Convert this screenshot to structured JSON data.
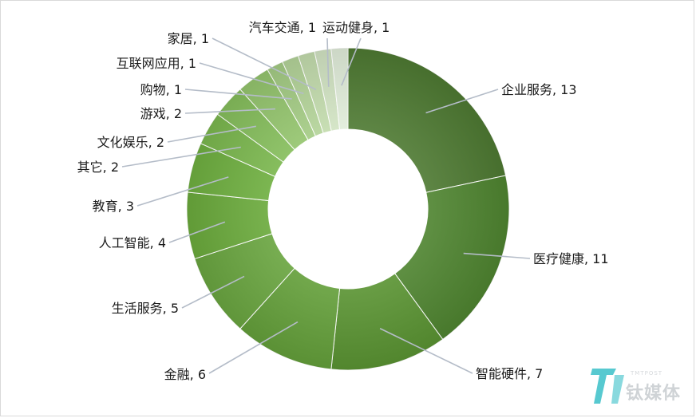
{
  "chart_data": {
    "type": "pie",
    "donut": true,
    "title": "",
    "slices": [
      {
        "label": "企业服务",
        "value": 13,
        "display": "企业服务, 13"
      },
      {
        "label": "医疗健康",
        "value": 11,
        "display": "医疗健康, 11"
      },
      {
        "label": "智能硬件",
        "value": 7,
        "display": "智能硬件, 7"
      },
      {
        "label": "金融",
        "value": 6,
        "display": "金融, 6"
      },
      {
        "label": "生活服务",
        "value": 5,
        "display": "生活服务, 5"
      },
      {
        "label": "人工智能",
        "value": 4,
        "display": "人工智能, 4"
      },
      {
        "label": "教育",
        "value": 3,
        "display": "教育, 3"
      },
      {
        "label": "其它",
        "value": 2,
        "display": "其它, 2"
      },
      {
        "label": "文化娱乐",
        "value": 2,
        "display": "文化娱乐, 2"
      },
      {
        "label": "游戏",
        "value": 2,
        "display": "游戏, 2"
      },
      {
        "label": "购物",
        "value": 1,
        "display": "购物, 1"
      },
      {
        "label": "互联网应用",
        "value": 1,
        "display": "互联网应用, 1"
      },
      {
        "label": "家居",
        "value": 1,
        "display": "家居, 1"
      },
      {
        "label": "汽车交通",
        "value": 1,
        "display": "汽车交通, 1"
      },
      {
        "label": "运动健身",
        "value": 1,
        "display": "运动健身, 1"
      }
    ],
    "colors": [
      "#4e7a32",
      "#4f8530",
      "#5a9432",
      "#64a03a",
      "#6aa640",
      "#6bab3c",
      "#6fb040",
      "#7bb84e",
      "#86bf5c",
      "#95c66e",
      "#a5cd85",
      "#b5d59a",
      "#c4ddae",
      "#d3e5c4",
      "#e2eedb"
    ],
    "legend": "none",
    "data_labels": "outside with leader lines"
  },
  "watermark": {
    "text": "钛媒体",
    "subtext": "TMTPOST",
    "colors": {
      "mark": "#3ac0c8",
      "text": "#cfd3d6"
    }
  }
}
